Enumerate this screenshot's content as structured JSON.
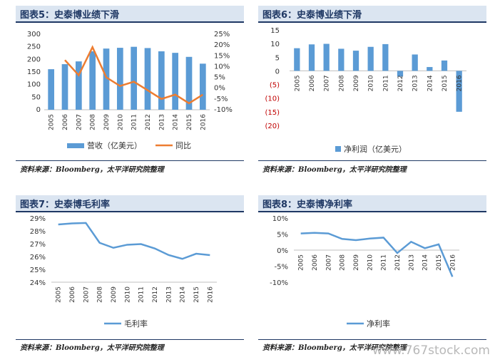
{
  "panels": [
    {
      "title": "图表5：史泰博业绩下滑",
      "source": "资料来源：Bloomberg，太平洋研究院整理"
    },
    {
      "title": "图表6：史泰博业绩下滑",
      "source": "资料来源：Bloomberg，太平洋研究院整理"
    },
    {
      "title": "图表7：史泰博毛利率",
      "source": "资料来源：Bloomberg，太平洋研究院整理"
    },
    {
      "title": "图表8：史泰博净利率",
      "source": "资料来源：Bloomberg，太平洋研究院整理"
    }
  ],
  "watermark": "www.767stock.com",
  "chart_data": [
    {
      "type": "bar",
      "categories": [
        "2005",
        "2006",
        "2007",
        "2008",
        "2009",
        "2010",
        "2011",
        "2012",
        "2013",
        "2014",
        "2015",
        "2016"
      ],
      "series": [
        {
          "name": "营收（亿美元）",
          "type": "bar",
          "axis": "left",
          "color": "#5b9bd5",
          "values": [
            161,
            181,
            192,
            232,
            243,
            246,
            250,
            245,
            232,
            226,
            210,
            183
          ]
        },
        {
          "name": "同比",
          "type": "line",
          "axis": "right",
          "color": "#ed7d31",
          "values": [
            null,
            0.13,
            0.06,
            0.19,
            0.05,
            0.01,
            0.03,
            -0.01,
            -0.05,
            -0.03,
            -0.07,
            -0.03
          ]
        }
      ],
      "ylim_left": [
        0,
        300
      ],
      "yticks_left": [
        "0",
        "50",
        "100",
        "150",
        "200",
        "250",
        "300"
      ],
      "ylim_right": [
        -0.1,
        0.25
      ],
      "yticks_right": [
        "-10%",
        "-5%",
        "0%",
        "5%",
        "10%",
        "15%",
        "20%",
        "25%"
      ],
      "legend": "bottom"
    },
    {
      "type": "bar",
      "categories": [
        "2005",
        "2006",
        "2007",
        "2008",
        "2009",
        "2010",
        "2011",
        "2012",
        "2013",
        "2014",
        "2015",
        "2016"
      ],
      "series": [
        {
          "name": "净利润（亿美元）",
          "color": "#5b9bd5",
          "values": [
            8.3,
            9.7,
            9.9,
            8.1,
            7.4,
            8.8,
            9.8,
            -2.1,
            6.0,
            1.4,
            3.8,
            -15
          ]
        }
      ],
      "ylim": [
        -20,
        15
      ],
      "yticks": [
        "(20)",
        "(15)",
        "(10)",
        "(5)",
        "0",
        "5",
        "10",
        "15"
      ],
      "legend": "bottom"
    },
    {
      "type": "line",
      "categories": [
        "2005",
        "2006",
        "2007",
        "2008",
        "2009",
        "2010",
        "2011",
        "2012",
        "2013",
        "2014",
        "2015",
        "2016"
      ],
      "series": [
        {
          "name": "毛利率",
          "color": "#5b9bd5",
          "values": [
            0.285,
            0.2858,
            0.2862,
            0.2707,
            0.2668,
            0.2692,
            0.2697,
            0.2663,
            0.2612,
            0.2582,
            0.2622,
            0.2611
          ]
        }
      ],
      "ylim": [
        0.24,
        0.29
      ],
      "yticks": [
        "24%",
        "25%",
        "26%",
        "27%",
        "28%",
        "29%"
      ],
      "legend": "bottom"
    },
    {
      "type": "line",
      "categories": [
        "2005",
        "2006",
        "2007",
        "2008",
        "2009",
        "2010",
        "2011",
        "2012",
        "2013",
        "2014",
        "2015",
        "2016"
      ],
      "series": [
        {
          "name": "净利率",
          "color": "#5b9bd5",
          "values": [
            0.052,
            0.054,
            0.052,
            0.035,
            0.031,
            0.036,
            0.039,
            -0.009,
            0.026,
            0.006,
            0.018,
            -0.083
          ]
        }
      ],
      "ylim": [
        -0.1,
        0.1
      ],
      "yticks": [
        "-10%",
        "-5%",
        "0%",
        "5%",
        "10%"
      ],
      "legend": "bottom"
    }
  ]
}
